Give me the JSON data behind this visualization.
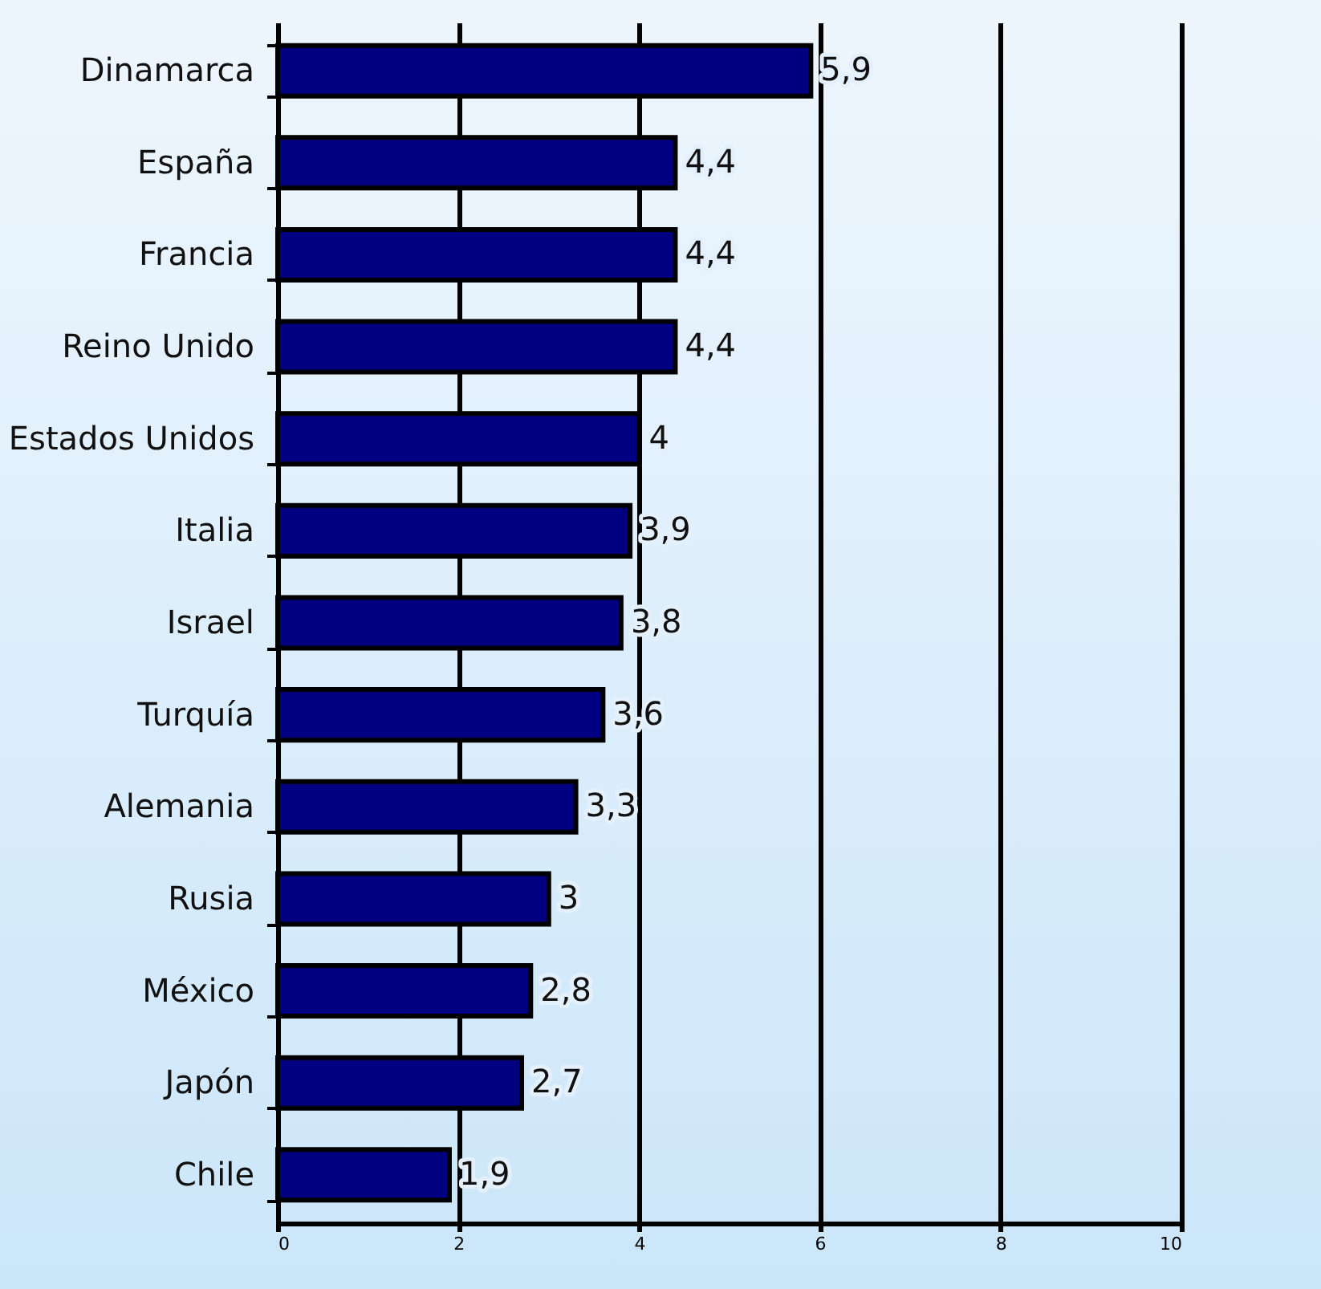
{
  "chart_data": {
    "type": "bar",
    "orientation": "horizontal",
    "categories": [
      "Dinamarca",
      "España",
      "Francia",
      "Reino Unido",
      "Estados Unidos",
      "Italia",
      "Israel",
      "Turquía",
      "Alemania",
      "Rusia",
      "México",
      "Japón",
      "Chile"
    ],
    "values": [
      5.9,
      4.4,
      4.4,
      4.4,
      4,
      3.9,
      3.8,
      3.6,
      3.3,
      3,
      2.8,
      2.7,
      1.9
    ],
    "value_labels": [
      "5,9",
      "4,4",
      "4,4",
      "4,4",
      "4",
      "3,9",
      "3,8",
      "3,6",
      "3,3",
      "3",
      "2,8",
      "2,7",
      "1,9"
    ],
    "color": "#000080",
    "xlim": [
      0,
      10
    ],
    "xticks": [
      0,
      2,
      4,
      6,
      8,
      10
    ],
    "grid": "x"
  }
}
